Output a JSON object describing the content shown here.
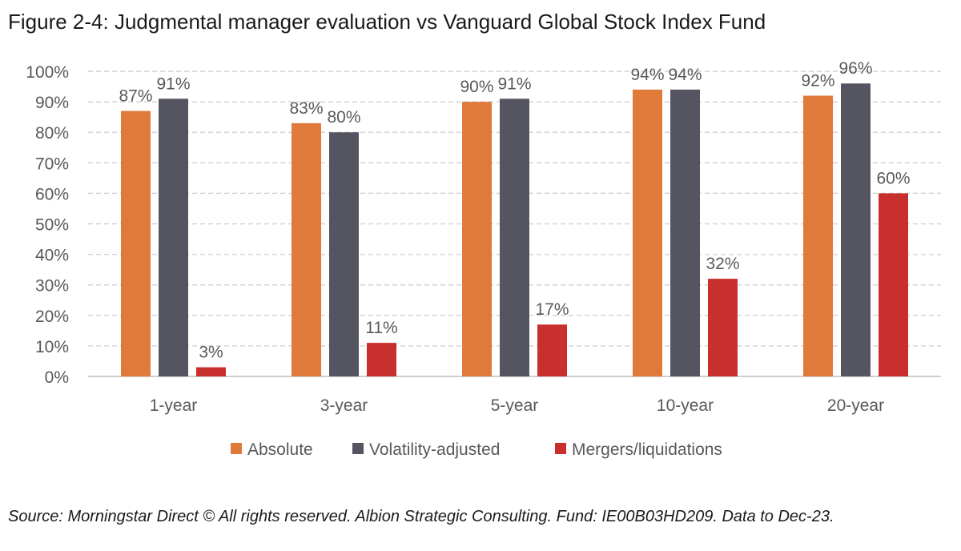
{
  "title": "Figure 2-4: Judgmental manager evaluation vs Vanguard Global Stock Index Fund",
  "source": "Source: Morningstar Direct © All rights reserved. Albion Strategic Consulting. Fund: IE00B03HD209. Data to Dec-23.",
  "chart_data": {
    "type": "bar",
    "categories": [
      "1-year",
      "3-year",
      "5-year",
      "10-year",
      "20-year"
    ],
    "series": [
      {
        "name": "Absolute",
        "color": "#E07A3A",
        "values": [
          87,
          83,
          90,
          94,
          92
        ],
        "labels": [
          "87%",
          "83%",
          "90%",
          "94%",
          "92%"
        ]
      },
      {
        "name": "Volatility-adjusted",
        "color": "#555562",
        "values": [
          91,
          80,
          91,
          94,
          96
        ],
        "labels": [
          "91%",
          "80%",
          "91%",
          "94%",
          "96%"
        ]
      },
      {
        "name": "Mergers/liquidations",
        "color": "#C8302E",
        "values": [
          3,
          11,
          17,
          32,
          60
        ],
        "labels": [
          "3%",
          "11%",
          "17%",
          "32%",
          "60%"
        ]
      }
    ],
    "y_ticks": [
      "0%",
      "10%",
      "20%",
      "30%",
      "40%",
      "50%",
      "60%",
      "70%",
      "80%",
      "90%",
      "100%"
    ],
    "ylim": [
      0,
      100
    ],
    "grid": true,
    "legend_position": "bottom"
  }
}
